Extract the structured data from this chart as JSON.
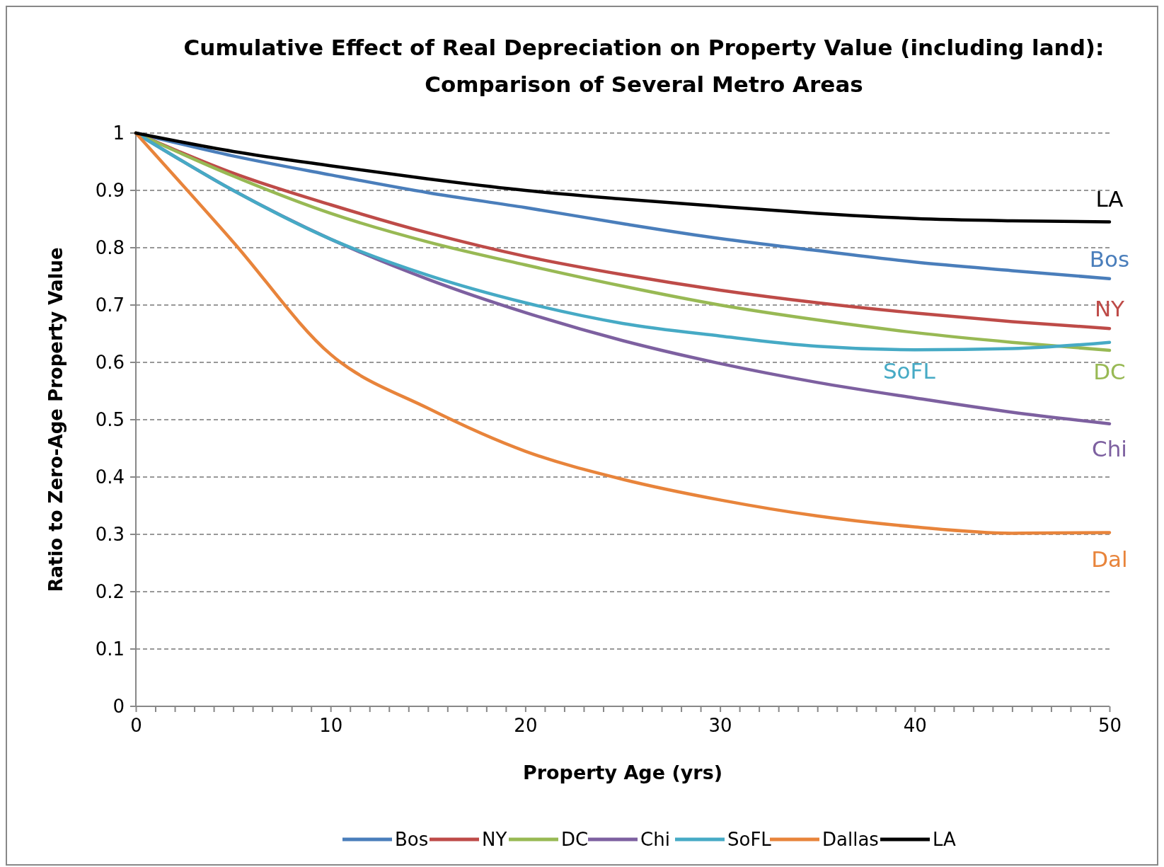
{
  "chart_data": {
    "type": "line",
    "title": "Cumulative Effect of Real Depreciation on Property Value (including land):\nComparison of Several Metro Areas",
    "xlabel": "Property Age (yrs)",
    "ylabel": "Ratio to Zero-Age Property Value",
    "x": [
      0,
      5,
      10,
      15,
      20,
      25,
      30,
      35,
      40,
      45,
      50
    ],
    "series": [
      {
        "name": "Bos",
        "color": "#4a7ebb",
        "values": [
          1,
          0.96,
          0.927,
          0.896,
          0.87,
          0.842,
          0.816,
          0.795,
          0.775,
          0.76,
          0.746
        ]
      },
      {
        "name": "NY",
        "color": "#be4b48",
        "values": [
          1,
          0.93,
          0.875,
          0.826,
          0.785,
          0.753,
          0.726,
          0.704,
          0.686,
          0.671,
          0.659
        ]
      },
      {
        "name": "DC",
        "color": "#98b954",
        "values": [
          1,
          0.925,
          0.86,
          0.81,
          0.77,
          0.733,
          0.7,
          0.674,
          0.652,
          0.635,
          0.621
        ]
      },
      {
        "name": "Chi",
        "color": "#7d60a0",
        "values": [
          1,
          0.9,
          0.815,
          0.745,
          0.687,
          0.638,
          0.598,
          0.565,
          0.538,
          0.513,
          0.493
        ]
      },
      {
        "name": "SoFL",
        "color": "#46aac5",
        "values": [
          1,
          0.9,
          0.815,
          0.752,
          0.704,
          0.668,
          0.646,
          0.628,
          0.622,
          0.624,
          0.635
        ]
      },
      {
        "name": "Dallas",
        "color": "#e8843b",
        "values": [
          1,
          0.81,
          0.614,
          0.52,
          0.445,
          0.396,
          0.36,
          0.332,
          0.313,
          0.302,
          0.303
        ]
      },
      {
        "name": "LA",
        "color": "#000000",
        "values": [
          1,
          0.968,
          0.943,
          0.92,
          0.9,
          0.885,
          0.872,
          0.86,
          0.851,
          0.847,
          0.845
        ]
      }
    ],
    "annotations": [
      "Bos",
      "NY",
      "DC",
      "Chi",
      "SoFL",
      "Dal",
      "LA"
    ],
    "xlim": [
      0,
      50
    ],
    "ylim": [
      0,
      1
    ],
    "xticks": [
      0,
      {
        "value": 1,
        "label": null
      },
      {
        "value": 2,
        "label": null
      },
      {
        "value": 3,
        "label": null
      },
      {
        "value": 4,
        "label": null
      },
      {
        "value": 5,
        "label": null
      },
      {
        "value": 6,
        "label": null
      },
      {
        "value": 7,
        "label": null
      },
      {
        "value": 8,
        "label": null
      },
      {
        "value": 9,
        "label": null
      },
      10,
      {
        "value": 11,
        "label": null
      },
      {
        "value": 12,
        "label": null
      },
      {
        "value": 13,
        "label": null
      },
      {
        "value": 14,
        "label": null
      },
      {
        "value": 15,
        "label": null
      },
      {
        "value": 16,
        "label": null
      },
      {
        "value": 17,
        "label": null
      },
      {
        "value": 18,
        "label": null
      },
      {
        "value": 19,
        "label": null
      },
      20,
      {
        "value": 21,
        "label": null
      },
      {
        "value": 22,
        "label": null
      },
      {
        "value": 23,
        "label": null
      },
      {
        "value": 24,
        "label": null
      },
      {
        "value": 25,
        "label": null
      },
      {
        "value": 26,
        "label": null
      },
      {
        "value": 27,
        "label": null
      },
      {
        "value": 28,
        "label": null
      },
      {
        "value": 29,
        "label": null
      },
      30,
      {
        "value": 31,
        "label": null
      },
      {
        "value": 32,
        "label": null
      },
      {
        "value": 33,
        "label": null
      },
      {
        "value": 34,
        "label": null
      },
      {
        "value": 35,
        "label": null
      },
      {
        "value": 36,
        "label": null
      },
      {
        "value": 37,
        "label": null
      },
      {
        "value": 38,
        "label": null
      },
      {
        "value": 39,
        "label": null
      },
      40,
      {
        "value": 41,
        "label": null
      },
      {
        "value": 42,
        "label": null
      },
      {
        "value": 43,
        "label": null
      },
      {
        "value": 44,
        "label": null
      },
      {
        "value": 45,
        "label": null
      },
      {
        "value": 46,
        "label": null
      },
      {
        "value": 47,
        "label": null
      },
      {
        "value": 48,
        "label": null
      },
      {
        "value": 49,
        "label": null
      },
      50
    ],
    "yticks": [
      0,
      0.1,
      0.2,
      0.3,
      0.4,
      0.5,
      0.6,
      0.7,
      0.8,
      0.9,
      1
    ],
    "grid": "y",
    "legend": "bottom",
    "marker": "none",
    "line_style": "solid"
  }
}
